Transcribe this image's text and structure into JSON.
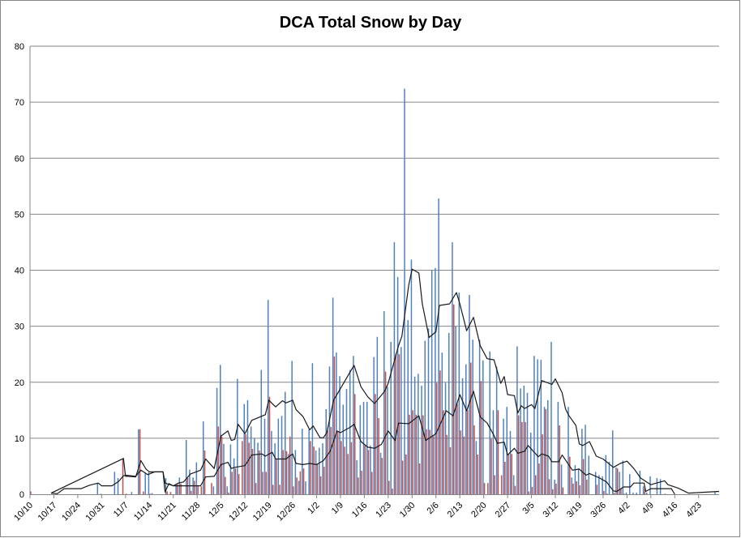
{
  "chart_data": {
    "type": "bar",
    "title": "DCA Total Snow by Day",
    "xlabel": "",
    "ylabel": "",
    "ylim": [
      0,
      80
    ],
    "yticks": [
      0,
      10,
      20,
      30,
      40,
      50,
      60,
      70,
      80
    ],
    "grid": true,
    "legend": "none",
    "x_tick_labels": [
      "10/10",
      "10/17",
      "10/24",
      "10/31",
      "11/7",
      "11/14",
      "11/21",
      "11/28",
      "12/5",
      "12/12",
      "12/19",
      "12/26",
      "1/2",
      "1/9",
      "1/16",
      "1/23",
      "1/30",
      "2/6",
      "2/13",
      "2/20",
      "2/27",
      "3/5",
      "3/12",
      "3/19",
      "3/26",
      "4/2",
      "4/9",
      "4/16",
      "4/23"
    ],
    "x_tick_interval_days": 7,
    "num_days": 203,
    "colors": {
      "series_blue": "#4F81BD",
      "series_red": "#C0504D",
      "lines": "#1a1a1a",
      "grid": "#868686"
    },
    "series": [
      {
        "name": "blue",
        "type": "bar",
        "values": {
          "20": 1.9,
          "21": 0.1,
          "25": 4,
          "26": 2.9,
          "30": 0.4,
          "32": 11.6,
          "34": 3.9,
          "35": 3.9,
          "36": 0.2,
          "40": 2.9,
          "43": 1.8,
          "44": 3,
          "46": 9.7,
          "47": 4.4,
          "48": 3,
          "49": 5.7,
          "51": 13,
          "54": 1.4,
          "55": 19,
          "56": 23.1,
          "57": 9,
          "58": 1.4,
          "59": 8.9,
          "60": 6.4,
          "61": 20.6,
          "63": 16.1,
          "64": 16.8,
          "65": 12.1,
          "66": 10,
          "67": 9.2,
          "68": 22.2,
          "69": 13.5,
          "70": 34.7,
          "71": 11.3,
          "72": 9.1,
          "73": 13.5,
          "74": 14,
          "75": 18.3,
          "76": 7.2,
          "77": 23.8,
          "78": 7.9,
          "79": 2.4,
          "80": 11.7,
          "81": 2.3,
          "82": 11.6,
          "83": 23.4,
          "84": 7.8,
          "85": 8.3,
          "86": 9.1,
          "87": 15.2,
          "88": 22.8,
          "89": 35.1,
          "90": 25.3,
          "91": 21.1,
          "92": 16,
          "93": 18.8,
          "94": 22.2,
          "95": 24.7,
          "96": 6.1,
          "97": 15.9,
          "98": 16.5,
          "99": 16.5,
          "100": 8.7,
          "101": 24.5,
          "102": 28.1,
          "103": 7.4,
          "104": 32.7,
          "105": 19.2,
          "106": 27.2,
          "107": 45,
          "108": 38.8,
          "109": 26.3,
          "110": 72.4,
          "111": 31.1,
          "112": 41.9,
          "113": 21,
          "114": 21.5,
          "115": 19.4,
          "116": 27.4,
          "117": 29.6,
          "118": 40,
          "119": 40.4,
          "120": 52.8,
          "121": 25.3,
          "122": 19.9,
          "123": 28.8,
          "124": 45,
          "125": 30,
          "126": 36,
          "127": 20.7,
          "128": 23.2,
          "129": 35.6,
          "130": 27.6,
          "131": 9.5,
          "132": 27.6,
          "133": 23.9,
          "135": 25.5,
          "136": 15,
          "137": 22.8,
          "139": 13.5,
          "140": 15.6,
          "141": 11.3,
          "142": 3.4,
          "143": 26.4,
          "144": 18.9,
          "145": 19.4,
          "146": 18.1,
          "147": 11,
          "148": 24.7,
          "149": 24.1,
          "150": 24,
          "151": 15.6,
          "152": 16.8,
          "153": 27.2,
          "154": 2.6,
          "155": 16.5,
          "156": 5.3,
          "158": 15.6,
          "159": 3,
          "160": 5.2,
          "161": 4.6,
          "162": 11.7,
          "163": 12.4,
          "164": 6.9,
          "166": 4,
          "167": 3.4,
          "168": 3.2,
          "169": 7,
          "170": 5.8,
          "171": 11.4,
          "172": 4.8,
          "173": 4,
          "174": 6,
          "175": 0.3,
          "176": 3.6,
          "177": 0.3,
          "178": 0.3,
          "179": 4.2,
          "180": 1.4,
          "181": 0.3,
          "182": 3.2,
          "184": 2.9,
          "185": 2.7,
          "201": 0.4
        }
      },
      {
        "name": "red",
        "type": "bar",
        "values": {
          "0": 0.5,
          "27": 6.3,
          "28": 0.1,
          "32": 11.6,
          "33": 0.5,
          "35": 0.1,
          "40": 0.5,
          "41": 0.4,
          "43": 1.8,
          "44": 1.9,
          "46": 2.9,
          "47": 0.6,
          "48": 2.4,
          "49": 1.4,
          "50": 1.4,
          "51": 7.8,
          "53": 2,
          "55": 12.1,
          "56": 10.3,
          "57": 3.1,
          "58": 0.3,
          "59": 4,
          "60": 4.6,
          "61": 3.6,
          "62": 9.5,
          "63": 10.7,
          "64": 9.2,
          "65": 8.1,
          "66": 2,
          "67": 7.8,
          "68": 4,
          "69": 4,
          "70": 17.4,
          "71": 1.7,
          "72": 6.2,
          "73": 1.7,
          "74": 7.9,
          "75": 7.7,
          "76": 10.3,
          "77": 1.4,
          "78": 3,
          "79": 4.1,
          "80": 4.6,
          "82": 9.5,
          "83": 8.5,
          "84": 5.5,
          "85": 3.2,
          "86": 4.9,
          "87": 11.4,
          "88": 12,
          "89": 24.6,
          "90": 11.2,
          "91": 9.5,
          "92": 8.5,
          "93": 7.2,
          "94": 9.3,
          "95": 17.9,
          "96": 3,
          "97": 4.2,
          "98": 8.7,
          "99": 7.9,
          "100": 4,
          "101": 17.9,
          "102": 13.6,
          "103": 6.5,
          "104": 21.9,
          "105": 2.4,
          "106": 1,
          "107": 25,
          "108": 25,
          "109": 6,
          "110": 7.1,
          "111": 14.2,
          "112": 15,
          "113": 14.2,
          "114": 5.5,
          "115": 14.1,
          "116": 11.6,
          "117": 11.5,
          "118": 10.4,
          "119": 19.9,
          "120": 22.1,
          "121": 15,
          "122": 10.6,
          "123": 8.4,
          "124": 33.9,
          "125": 16.1,
          "126": 11.4,
          "127": 10.3,
          "128": 15,
          "129": 23.5,
          "130": 12.3,
          "131": 7.1,
          "132": 20.2,
          "133": 2,
          "134": 2,
          "135": 9.9,
          "136": 3.4,
          "137": 15,
          "138": 3.4,
          "139": 5.8,
          "140": 7.1,
          "141": 7.2,
          "142": 1.5,
          "143": 14.1,
          "144": 12.9,
          "145": 12.9,
          "146": 0.5,
          "147": 1.3,
          "148": 3.4,
          "149": 5.5,
          "150": 10.7,
          "151": 15.2,
          "152": 2.7,
          "153": 0.9,
          "154": 1.9,
          "155": 12.3,
          "156": 1.2,
          "158": 6.7,
          "159": 1.9,
          "160": 2.3,
          "161": 1.6,
          "162": 6.3,
          "163": 2.6,
          "166": 1.7,
          "168": 0.6,
          "169": 0.1,
          "171": 0.3,
          "172": 4.6,
          "173": 1,
          "174": 0.1,
          "180": 1,
          "186": 0.1
        }
      },
      {
        "name": "upper-average",
        "type": "line",
        "points": [
          [
            6.2,
            0.2
          ],
          [
            27.4,
            6.4
          ],
          [
            28,
            3.2
          ],
          [
            29,
            3.2
          ],
          [
            31,
            3.1
          ],
          [
            32.5,
            6
          ],
          [
            34,
            4.5
          ],
          [
            35,
            4
          ],
          [
            39,
            4
          ],
          [
            39.6,
            0.4
          ],
          [
            40.7,
            1.9
          ],
          [
            42,
            1.5
          ],
          [
            43.5,
            2
          ],
          [
            45,
            2.2
          ],
          [
            47,
            3.6
          ],
          [
            50,
            4.3
          ],
          [
            51.5,
            6.3
          ],
          [
            54,
            4.6
          ],
          [
            56,
            10.4
          ],
          [
            58,
            11.3
          ],
          [
            59,
            9.6
          ],
          [
            60,
            9.8
          ],
          [
            61,
            12.5
          ],
          [
            63,
            10.8
          ],
          [
            65,
            13.2
          ],
          [
            69,
            14.2
          ],
          [
            70,
            16.8
          ],
          [
            72,
            15.6
          ],
          [
            74,
            16.7
          ],
          [
            75,
            16.3
          ],
          [
            77,
            16.8
          ],
          [
            78,
            15.1
          ],
          [
            80,
            13.9
          ],
          [
            82,
            11.5
          ],
          [
            83,
            12.2
          ],
          [
            85,
            10.1
          ],
          [
            86,
            10.1
          ],
          [
            87,
            11
          ],
          [
            89,
            16.8
          ],
          [
            92,
            19.9
          ],
          [
            94,
            22
          ],
          [
            95,
            23
          ],
          [
            97,
            19.2
          ],
          [
            99,
            17.4
          ],
          [
            101,
            16.2
          ],
          [
            104,
            18.4
          ],
          [
            105,
            19.8
          ],
          [
            108,
            26.5
          ],
          [
            109,
            28.2
          ],
          [
            111,
            37.3
          ],
          [
            112,
            40.2
          ],
          [
            114,
            39.5
          ],
          [
            115,
            34
          ],
          [
            117,
            28
          ],
          [
            119,
            29
          ],
          [
            120,
            33.7
          ],
          [
            123,
            34
          ],
          [
            125,
            36
          ],
          [
            126,
            34
          ],
          [
            128,
            29.2
          ],
          [
            130,
            31.6
          ],
          [
            132,
            26.5
          ],
          [
            134,
            24.2
          ],
          [
            136,
            24
          ],
          [
            138,
            19.8
          ],
          [
            139,
            21
          ],
          [
            140,
            17.8
          ],
          [
            142,
            17.6
          ],
          [
            143,
            14.5
          ],
          [
            144,
            15.8
          ],
          [
            145,
            15.3
          ],
          [
            147,
            16
          ],
          [
            148,
            15.3
          ],
          [
            150,
            20.3
          ],
          [
            153,
            19.6
          ],
          [
            154,
            20.6
          ],
          [
            156,
            18.1
          ],
          [
            157,
            15.2
          ],
          [
            158,
            14
          ],
          [
            160,
            12.3
          ],
          [
            161,
            9
          ],
          [
            162,
            8.7
          ],
          [
            164,
            9.4
          ],
          [
            166,
            6.8
          ],
          [
            168,
            6.3
          ],
          [
            171,
            4.8
          ],
          [
            173,
            5.5
          ],
          [
            175,
            5.9
          ],
          [
            177,
            4.6
          ],
          [
            179,
            2.9
          ],
          [
            182,
            1.7
          ],
          [
            183,
            1.9
          ],
          [
            186,
            2.4
          ],
          [
            187,
            1.7
          ],
          [
            190,
            1.1
          ],
          [
            193,
            0.2
          ],
          [
            202,
            0.5
          ]
        ]
      },
      {
        "name": "lower-average",
        "type": "line",
        "points": [
          [
            6.2,
            0.2
          ],
          [
            8,
            0.1
          ],
          [
            10,
            1
          ],
          [
            15,
            1
          ],
          [
            17.4,
            1.6
          ],
          [
            20,
            2
          ],
          [
            21,
            1.5
          ],
          [
            24,
            1.5
          ],
          [
            26,
            2.3
          ],
          [
            27.4,
            3.3
          ],
          [
            28,
            3.4
          ],
          [
            31,
            3.2
          ],
          [
            32.5,
            4.3
          ],
          [
            34.5,
            3.5
          ],
          [
            36.5,
            4
          ],
          [
            39,
            4
          ],
          [
            39.6,
            2
          ],
          [
            42,
            1.5
          ],
          [
            47,
            1.5
          ],
          [
            50,
            1.5
          ],
          [
            51.5,
            3.1
          ],
          [
            54,
            3.2
          ],
          [
            56,
            5.3
          ],
          [
            58,
            5.7
          ],
          [
            59,
            4.6
          ],
          [
            60,
            4.8
          ],
          [
            63,
            5.1
          ],
          [
            65,
            7
          ],
          [
            68,
            7.2
          ],
          [
            69,
            6.8
          ],
          [
            71,
            7.5
          ],
          [
            72,
            6.3
          ],
          [
            75,
            6.3
          ],
          [
            77,
            7.2
          ],
          [
            78,
            5.5
          ],
          [
            80,
            5.3
          ],
          [
            82,
            5.5
          ],
          [
            84,
            5.3
          ],
          [
            86,
            6
          ],
          [
            88,
            7.7
          ],
          [
            90,
            11.3
          ],
          [
            91,
            11
          ],
          [
            94,
            12
          ],
          [
            95,
            12.5
          ],
          [
            97,
            9.4
          ],
          [
            99,
            8.4
          ],
          [
            101,
            8.2
          ],
          [
            103,
            8.9
          ],
          [
            105,
            11.3
          ],
          [
            107,
            9.6
          ],
          [
            108,
            12.7
          ],
          [
            111,
            12.6
          ],
          [
            114,
            14
          ],
          [
            116,
            9.6
          ],
          [
            119,
            10.8
          ],
          [
            122,
            14.9
          ],
          [
            124,
            14
          ],
          [
            126,
            17.8
          ],
          [
            128,
            14.9
          ],
          [
            130,
            18.4
          ],
          [
            132,
            13.8
          ],
          [
            134,
            12.7
          ],
          [
            136,
            10.5
          ],
          [
            137,
            9.1
          ],
          [
            139,
            9.3
          ],
          [
            140,
            7
          ],
          [
            142,
            8.2
          ],
          [
            143,
            7.3
          ],
          [
            145,
            7.7
          ],
          [
            146,
            8.7
          ],
          [
            149,
            6.7
          ],
          [
            150,
            7.2
          ],
          [
            152,
            6.8
          ],
          [
            153,
            5.8
          ],
          [
            155,
            5.8
          ],
          [
            156,
            7
          ],
          [
            159,
            4.3
          ],
          [
            161,
            4.5
          ],
          [
            163,
            3.4
          ],
          [
            164,
            3.7
          ],
          [
            167,
            2.9
          ],
          [
            169,
            2.2
          ],
          [
            171,
            0.6
          ],
          [
            172,
            0.5
          ],
          [
            174,
            1.3
          ],
          [
            176,
            1.3
          ],
          [
            177,
            2
          ],
          [
            180,
            2
          ],
          [
            180.5,
            0.5
          ],
          [
            182,
            1
          ],
          [
            188,
            1
          ],
          [
            189,
            0
          ]
        ]
      }
    ]
  }
}
